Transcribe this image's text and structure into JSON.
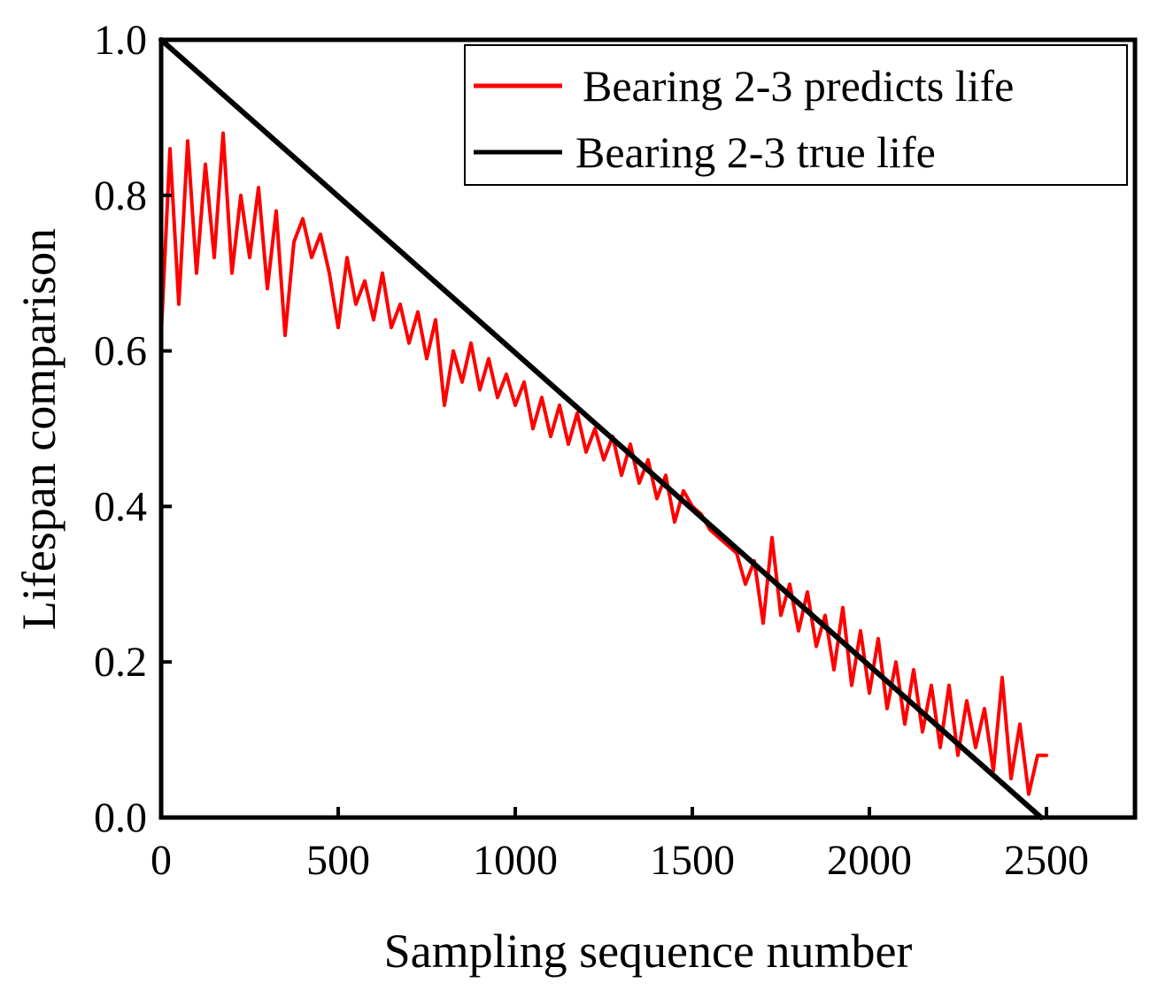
{
  "chart_data": {
    "type": "line",
    "title": "",
    "xlabel": "Sampling sequence number",
    "ylabel": "Lifespan comparison",
    "xlim": [
      0,
      2750
    ],
    "ylim": [
      0,
      1.0
    ],
    "xticks": [
      0,
      500,
      1000,
      1500,
      2000,
      2500
    ],
    "xtick_labels": [
      "0",
      "500",
      "1000",
      "1500",
      "2000",
      "2500"
    ],
    "yticks": [
      0.0,
      0.2,
      0.4,
      0.6,
      0.8,
      1.0
    ],
    "ytick_labels": [
      "0.0",
      "0.2",
      "0.4",
      "0.6",
      "0.8",
      "1.0"
    ],
    "grid": false,
    "legend_position": "top-right",
    "series": [
      {
        "name": "Bearing 2-3 predicts life",
        "color": "#ff0000",
        "x": [
          0,
          25,
          50,
          75,
          100,
          125,
          150,
          175,
          200,
          225,
          250,
          275,
          300,
          325,
          350,
          375,
          400,
          425,
          450,
          475,
          500,
          525,
          550,
          575,
          600,
          625,
          650,
          675,
          700,
          725,
          750,
          775,
          800,
          825,
          850,
          875,
          900,
          925,
          950,
          975,
          1000,
          1025,
          1050,
          1075,
          1100,
          1125,
          1150,
          1175,
          1200,
          1225,
          1250,
          1275,
          1300,
          1325,
          1350,
          1375,
          1400,
          1425,
          1450,
          1475,
          1500,
          1525,
          1550,
          1575,
          1600,
          1625,
          1650,
          1675,
          1700,
          1725,
          1750,
          1775,
          1800,
          1825,
          1850,
          1875,
          1900,
          1925,
          1950,
          1975,
          2000,
          2025,
          2050,
          2075,
          2100,
          2125,
          2150,
          2175,
          2200,
          2225,
          2250,
          2275,
          2300,
          2325,
          2350,
          2375,
          2400,
          2425,
          2450,
          2475,
          2500
        ],
        "values": [
          0.62,
          0.86,
          0.66,
          0.87,
          0.7,
          0.84,
          0.72,
          0.88,
          0.7,
          0.8,
          0.72,
          0.81,
          0.68,
          0.78,
          0.62,
          0.74,
          0.77,
          0.72,
          0.75,
          0.7,
          0.63,
          0.72,
          0.66,
          0.69,
          0.64,
          0.7,
          0.63,
          0.66,
          0.61,
          0.65,
          0.59,
          0.64,
          0.53,
          0.6,
          0.56,
          0.61,
          0.55,
          0.59,
          0.54,
          0.57,
          0.53,
          0.56,
          0.5,
          0.54,
          0.49,
          0.53,
          0.48,
          0.52,
          0.47,
          0.5,
          0.46,
          0.49,
          0.44,
          0.48,
          0.43,
          0.46,
          0.41,
          0.44,
          0.38,
          0.42,
          0.4,
          0.39,
          0.37,
          0.36,
          0.35,
          0.34,
          0.3,
          0.33,
          0.25,
          0.36,
          0.26,
          0.3,
          0.24,
          0.29,
          0.22,
          0.26,
          0.19,
          0.27,
          0.17,
          0.24,
          0.16,
          0.23,
          0.14,
          0.2,
          0.12,
          0.19,
          0.11,
          0.17,
          0.09,
          0.17,
          0.08,
          0.15,
          0.09,
          0.14,
          0.06,
          0.18,
          0.05,
          0.12,
          0.03,
          0.08,
          0.08
        ]
      },
      {
        "name": "Bearing 2-3 true life",
        "color": "#000000",
        "x": [
          0,
          2485
        ],
        "values": [
          1.0,
          0.0
        ]
      }
    ]
  }
}
